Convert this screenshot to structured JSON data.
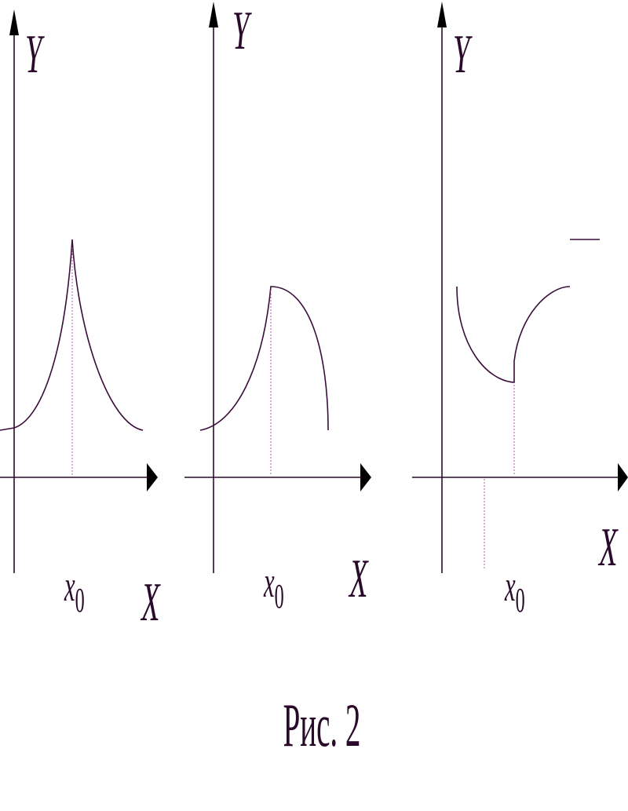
{
  "panels": [
    {
      "y_label": "Y",
      "x_label": "X",
      "point_label": {
        "main": "x",
        "sub": "0"
      }
    },
    {
      "y_label": "Y",
      "x_label": "X",
      "point_label": {
        "main": "x",
        "sub": "0"
      }
    },
    {
      "y_label": "Y",
      "x_label": "X",
      "point_label": {
        "main": "x",
        "sub": "0"
      }
    }
  ],
  "caption": "Рис. 2"
}
